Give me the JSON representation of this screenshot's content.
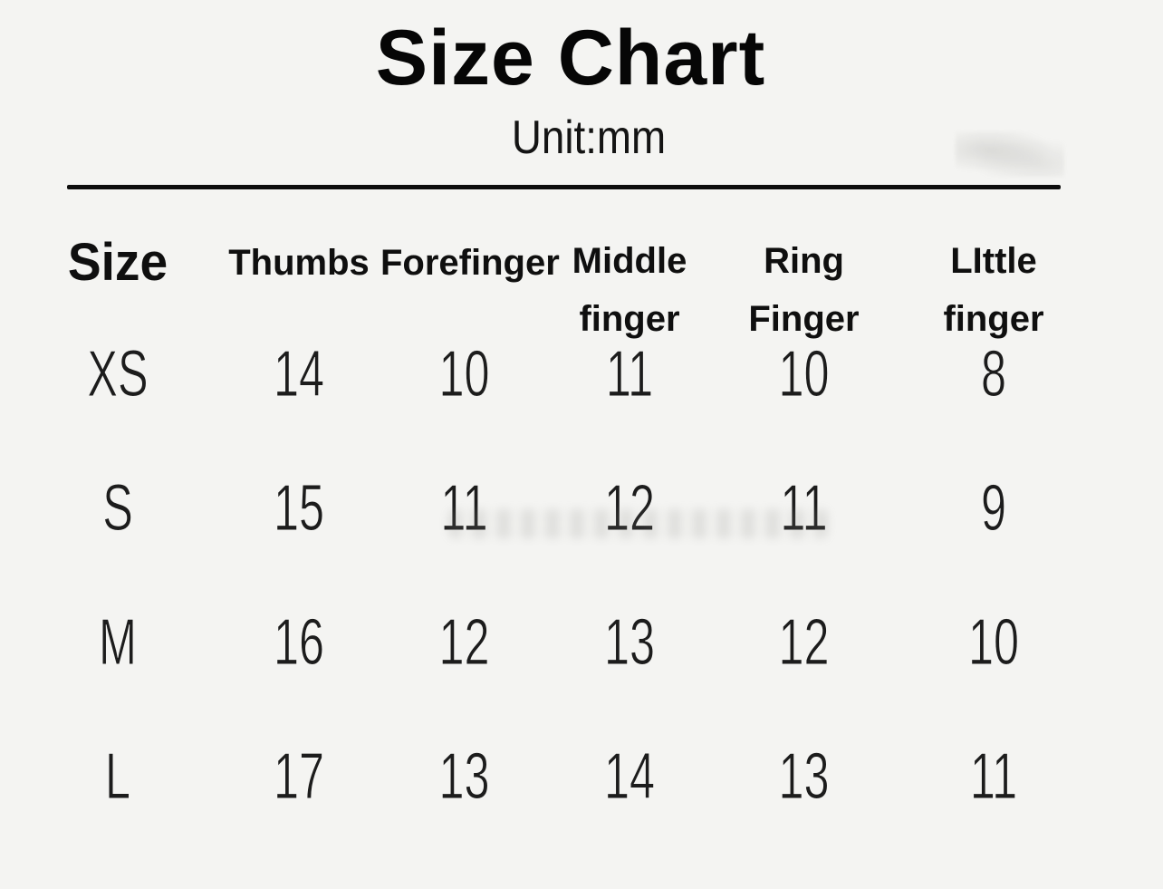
{
  "page": {
    "background": "#f4f4f2",
    "ink": "#121212",
    "divider_color": "#0d0d0d"
  },
  "header": {
    "title": "Size Chart",
    "unit_label": "Unit:mm"
  },
  "table": {
    "columns": [
      {
        "id": "size",
        "label": "Size"
      },
      {
        "id": "thumbs",
        "label": "Thumbs"
      },
      {
        "id": "forefinger",
        "label": "Forefinger"
      },
      {
        "id": "middle-finger",
        "label": "Middle\nfinger"
      },
      {
        "id": "ring-finger",
        "label": "Ring\nFinger"
      },
      {
        "id": "little-finger",
        "label": "LIttle\nfinger"
      }
    ],
    "rows": [
      {
        "size": "XS",
        "values": [
          "14",
          "10",
          "11",
          "10",
          "8"
        ]
      },
      {
        "size": "S",
        "values": [
          "15",
          "11",
          "12",
          "11",
          "9"
        ]
      },
      {
        "size": "M",
        "values": [
          "16",
          "12",
          "13",
          "12",
          "10"
        ]
      },
      {
        "size": "L",
        "values": [
          "17",
          "13",
          "14",
          "13",
          "11"
        ]
      }
    ]
  },
  "chart_data": {
    "type": "table",
    "title": "Size Chart",
    "unit": "mm",
    "columns": [
      "Size",
      "Thumbs",
      "Forefinger",
      "Middle finger",
      "Ring Finger",
      "LIttle finger"
    ],
    "rows": [
      [
        "XS",
        14,
        10,
        11,
        10,
        8
      ],
      [
        "S",
        15,
        11,
        12,
        11,
        9
      ],
      [
        "M",
        16,
        12,
        13,
        12,
        10
      ],
      [
        "L",
        17,
        13,
        14,
        13,
        11
      ]
    ]
  }
}
